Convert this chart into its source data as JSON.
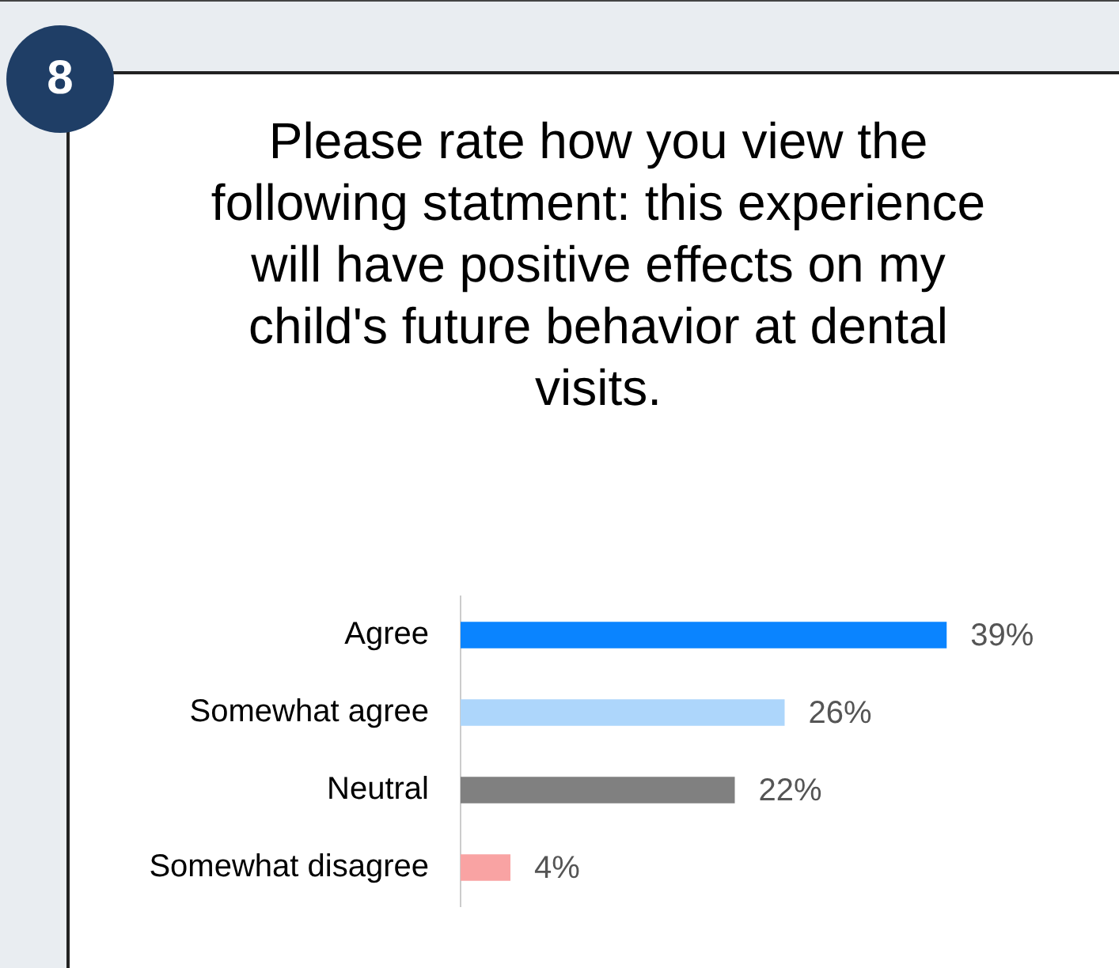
{
  "chart_data": {
    "type": "bar",
    "orientation": "horizontal",
    "title": "Please rate how you view the following statment: this experience will have positive effects on my child's future behavior at dental visits.",
    "categories": [
      "Agree",
      "Somewhat agree",
      "Neutral",
      "Somewhat disagree"
    ],
    "values": [
      39,
      26,
      22,
      4
    ],
    "colors": [
      "#0a84ff",
      "#add6fb",
      "#808080",
      "#f9a3a3"
    ],
    "value_labels": [
      "39%",
      "26%",
      "22%",
      "4%"
    ],
    "annotations": [
      "8"
    ]
  }
}
